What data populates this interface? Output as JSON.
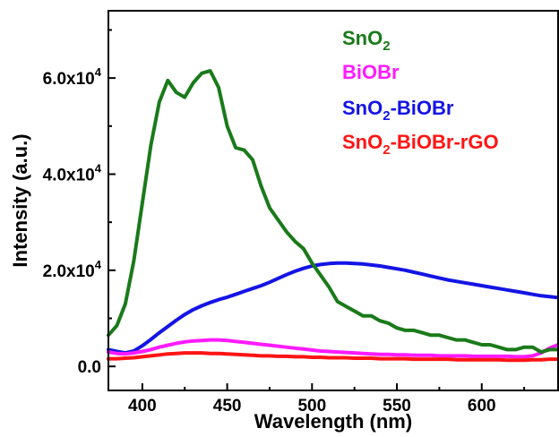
{
  "chart_data": {
    "type": "line",
    "xlabel": "Wavelength (nm)",
    "ylabel": "Intensity (a.u.)",
    "xlim": [
      380,
      645
    ],
    "ylim": [
      -5000,
      74000
    ],
    "x_ticks": [
      400,
      450,
      500,
      550,
      600
    ],
    "x_tick_labels": [
      "400",
      "450",
      "500",
      "550",
      "600"
    ],
    "y_ticks": [
      0,
      20000,
      40000,
      60000
    ],
    "y_tick_labels": [
      {
        "base": "0.0",
        "exp": ""
      },
      {
        "base": "2.0x10",
        "exp": "4"
      },
      {
        "base": "4.0x10",
        "exp": "4"
      },
      {
        "base": "6.0x10",
        "exp": "4"
      }
    ],
    "legend_position": "top-right",
    "x": [
      380,
      385,
      390,
      395,
      400,
      405,
      410,
      415,
      420,
      425,
      430,
      435,
      440,
      445,
      450,
      455,
      460,
      465,
      470,
      475,
      480,
      485,
      490,
      495,
      500,
      505,
      510,
      515,
      520,
      525,
      530,
      535,
      540,
      545,
      550,
      555,
      560,
      565,
      570,
      575,
      580,
      585,
      590,
      595,
      600,
      605,
      610,
      615,
      620,
      625,
      630,
      635,
      640,
      645
    ],
    "series": [
      {
        "name": "SnO2",
        "label_main": "SnO",
        "label_sub": "2",
        "label_rest": "",
        "color": "#1a7a1a",
        "values": [
          6500,
          8500,
          13000,
          22000,
          34000,
          46000,
          55000,
          59500,
          57000,
          56000,
          59000,
          61000,
          61500,
          58000,
          50000,
          45500,
          45000,
          43000,
          37500,
          33000,
          30500,
          28000,
          26000,
          24500,
          21500,
          19000,
          16500,
          13500,
          12500,
          11500,
          10500,
          10500,
          9500,
          9000,
          8000,
          7500,
          7500,
          7000,
          6500,
          6500,
          6000,
          5500,
          5500,
          5000,
          4500,
          4500,
          4000,
          3500,
          3500,
          4000,
          4000,
          3000,
          3500,
          3500
        ]
      },
      {
        "name": "BiOBr",
        "label_main": "BiOBr",
        "label_sub": "",
        "label_rest": "",
        "color": "#ff1aff",
        "values": [
          3000,
          2700,
          2600,
          2800,
          3100,
          3500,
          4000,
          4400,
          4800,
          5100,
          5300,
          5400,
          5500,
          5500,
          5400,
          5200,
          5000,
          4800,
          4600,
          4400,
          4200,
          4000,
          3800,
          3600,
          3400,
          3200,
          3100,
          3000,
          2900,
          2800,
          2700,
          2600,
          2500,
          2500,
          2400,
          2400,
          2300,
          2300,
          2300,
          2200,
          2200,
          2200,
          2200,
          2100,
          2100,
          2100,
          2100,
          2100,
          2000,
          2000,
          2200,
          2800,
          3800,
          4500
        ]
      },
      {
        "name": "SnO2-BiOBr",
        "label_main": "SnO",
        "label_sub": "2",
        "label_rest": "-BiOBr",
        "color": "#1414e6",
        "values": [
          3500,
          3100,
          2800,
          3200,
          4300,
          5600,
          7000,
          8300,
          9600,
          10800,
          11800,
          12600,
          13300,
          13900,
          14400,
          15000,
          15600,
          16200,
          16800,
          17500,
          18300,
          19100,
          19800,
          20400,
          20900,
          21200,
          21400,
          21500,
          21500,
          21400,
          21300,
          21100,
          20900,
          20600,
          20300,
          20000,
          19600,
          19200,
          18800,
          18400,
          18000,
          17700,
          17400,
          17100,
          16800,
          16500,
          16200,
          15900,
          15600,
          15300,
          15000,
          14700,
          14500,
          14300
        ]
      },
      {
        "name": "SnO2-BiOBr-rGO",
        "label_main": "SnO",
        "label_sub": "2",
        "label_rest": "-BiOBr-rGO",
        "color": "#ff1414",
        "values": [
          1600,
          1600,
          1700,
          1800,
          2000,
          2200,
          2400,
          2600,
          2700,
          2800,
          2800,
          2800,
          2700,
          2700,
          2600,
          2500,
          2400,
          2300,
          2200,
          2200,
          2100,
          2100,
          2000,
          2000,
          1900,
          1900,
          1800,
          1800,
          1800,
          1700,
          1700,
          1700,
          1600,
          1600,
          1600,
          1600,
          1500,
          1500,
          1500,
          1500,
          1500,
          1400,
          1400,
          1400,
          1400,
          1400,
          1400,
          1300,
          1300,
          1300,
          1400,
          1400,
          1500,
          1500
        ]
      }
    ]
  }
}
